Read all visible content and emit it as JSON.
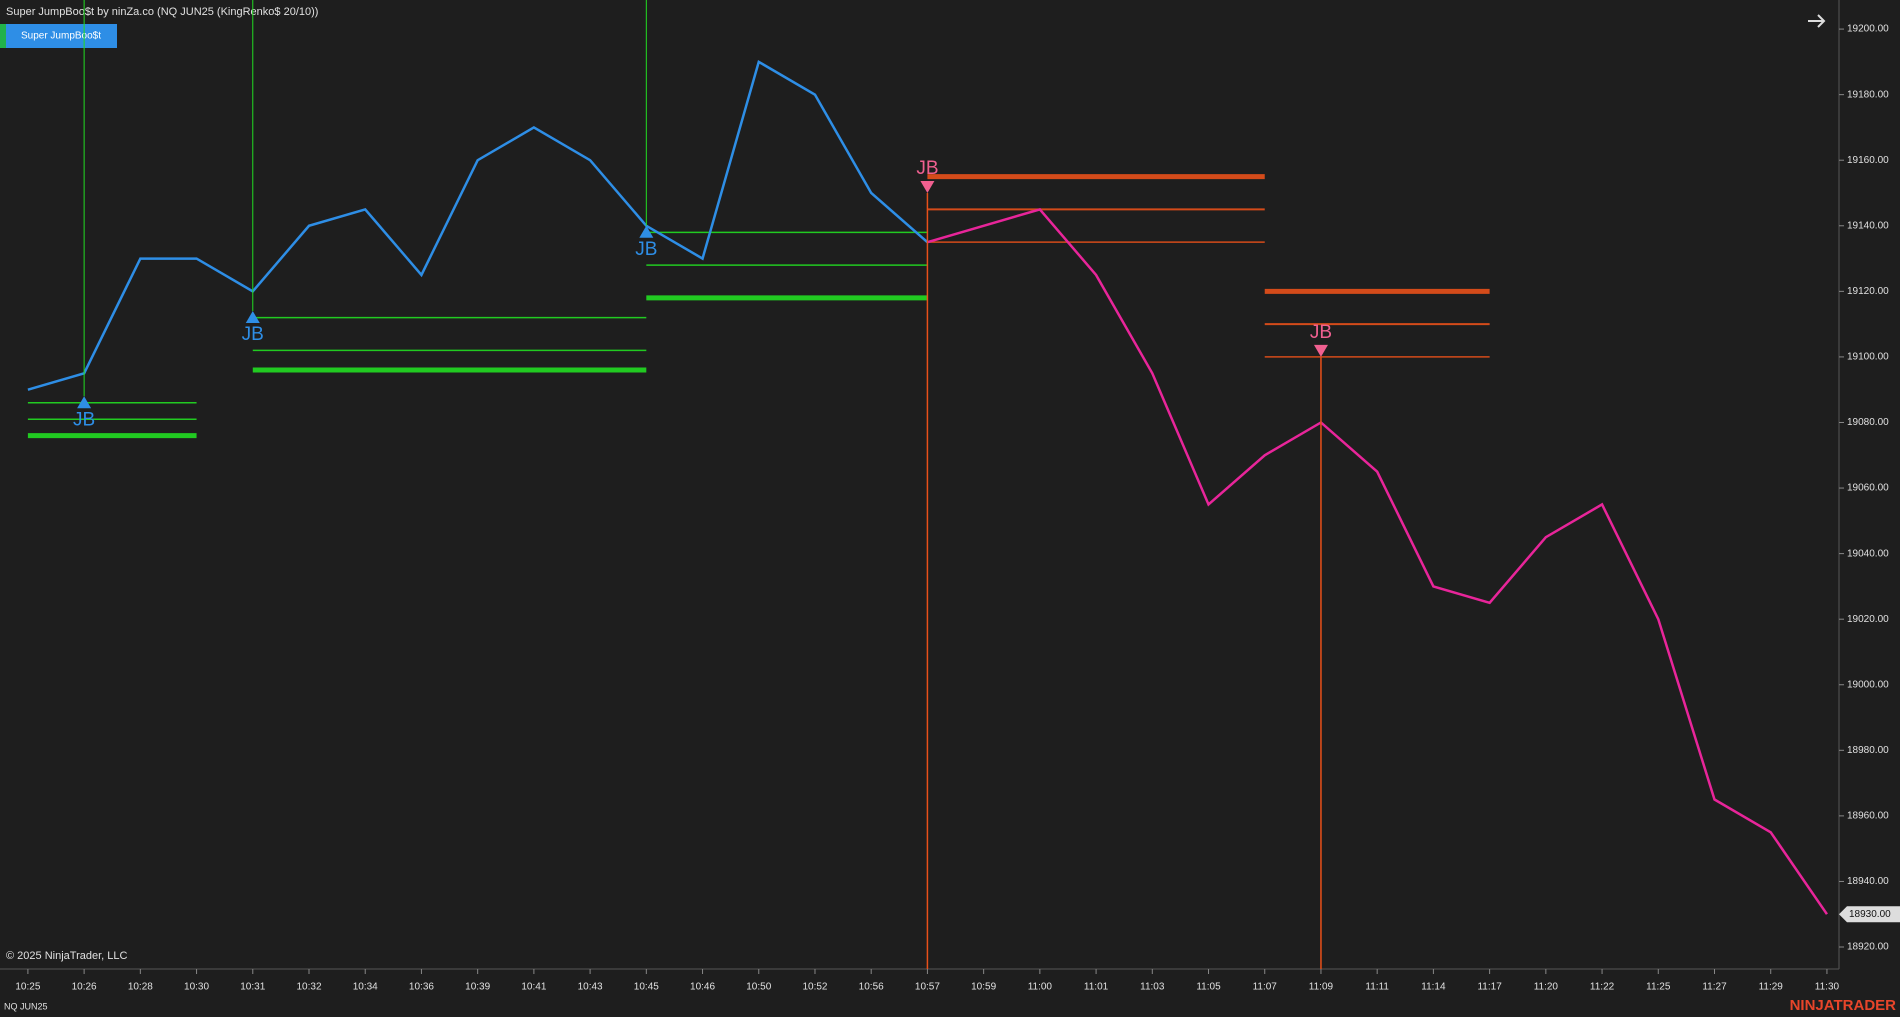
{
  "chart_data": {
    "type": "line",
    "title": "Super JumpBoo$t by ninZa.co (NQ JUN25 (KingRenko$ 20/10))",
    "indicator_button": "Super JumpBoo$t",
    "copyright": "© 2025 NinjaTrader, LLC",
    "instrument": "NQ JUN25",
    "brand": "NINJATRADER",
    "last_price": {
      "value": 18930,
      "label": "18930.00"
    },
    "categories": [
      "10:25",
      "10:26",
      "10:28",
      "10:30",
      "10:31",
      "10:32",
      "10:34",
      "10:36",
      "10:39",
      "10:41",
      "10:43",
      "10:45",
      "10:46",
      "10:50",
      "10:52",
      "10:56",
      "10:57",
      "10:59",
      "11:00",
      "11:01",
      "11:03",
      "11:05",
      "11:07",
      "11:09",
      "11:11",
      "11:14",
      "11:17",
      "11:20",
      "11:22",
      "11:25",
      "11:27",
      "11:29",
      "11:30"
    ],
    "series": [
      {
        "color": "#2e8ee6",
        "values": [
          19090,
          19095,
          19130,
          19130,
          19120,
          19140,
          19145,
          19125,
          19160,
          19170,
          19160,
          19140,
          19130,
          19190,
          19180,
          19150,
          19135,
          null,
          null,
          null,
          null,
          null,
          null,
          null,
          null,
          null,
          null,
          null,
          null,
          null,
          null,
          null,
          null
        ]
      },
      {
        "color": "#e8259a",
        "values": [
          null,
          null,
          null,
          null,
          null,
          null,
          null,
          null,
          null,
          null,
          null,
          null,
          null,
          null,
          null,
          null,
          19135,
          19140,
          19145,
          19125,
          19095,
          19055,
          19070,
          19080,
          19065,
          19030,
          19025,
          19045,
          19055,
          19020,
          18965,
          18955,
          18930
        ]
      }
    ],
    "signals": [
      {
        "label": "JB",
        "x": "10:26",
        "value": 19088,
        "marker": "up",
        "color": "#2e8ee6"
      },
      {
        "label": "JB",
        "x": "10:31",
        "value": 19114,
        "marker": "up",
        "color": "#2e8ee6"
      },
      {
        "label": "JB",
        "x": "10:45",
        "value": 19140,
        "marker": "up",
        "color": "#2e8ee6"
      },
      {
        "label": "JB",
        "x": "10:57",
        "value": 19150,
        "marker": "down",
        "color": "#f06090"
      },
      {
        "label": "JB",
        "x": "11:09",
        "value": 19100,
        "marker": "down",
        "color": "#f06090"
      }
    ],
    "levels": [
      {
        "from": "10:25",
        "to": "10:30",
        "color": "#22dd22",
        "values": [
          19086,
          19081,
          19076
        ]
      },
      {
        "from": "10:31",
        "to": "10:45",
        "color": "#22dd22",
        "values": [
          19112,
          19102,
          19096
        ]
      },
      {
        "from": "10:45",
        "to": "10:57",
        "color": "#22dd22",
        "values": [
          19138,
          19128,
          19118
        ]
      },
      {
        "from": "10:57",
        "to": "11:07",
        "color": "#e8501a",
        "values": [
          19135,
          19145,
          19155
        ]
      },
      {
        "from": "11:07",
        "to": "11:17",
        "color": "#e8501a",
        "values": [
          19100,
          19110,
          19120
        ]
      }
    ],
    "ylim": [
      18912,
      19212
    ],
    "yticks": [
      {
        "value": 18920,
        "label": "18920.00"
      },
      {
        "value": 18940,
        "label": "18940.00"
      },
      {
        "value": 18960,
        "label": "18960.00"
      },
      {
        "value": 18980,
        "label": "18980.00"
      },
      {
        "value": 19000,
        "label": "19000.00"
      },
      {
        "value": 19020,
        "label": "19020.00"
      },
      {
        "value": 19040,
        "label": "19040.00"
      },
      {
        "value": 19060,
        "label": "19060.00"
      },
      {
        "value": 19080,
        "label": "19080.00"
      },
      {
        "value": 19100,
        "label": "19100.00"
      },
      {
        "value": 19120,
        "label": "19120.00"
      },
      {
        "value": 19140,
        "label": "19140.00"
      },
      {
        "value": 19160,
        "label": "19160.00"
      },
      {
        "value": 19180,
        "label": "19180.00"
      },
      {
        "value": 19200,
        "label": "19200.00"
      }
    ]
  }
}
